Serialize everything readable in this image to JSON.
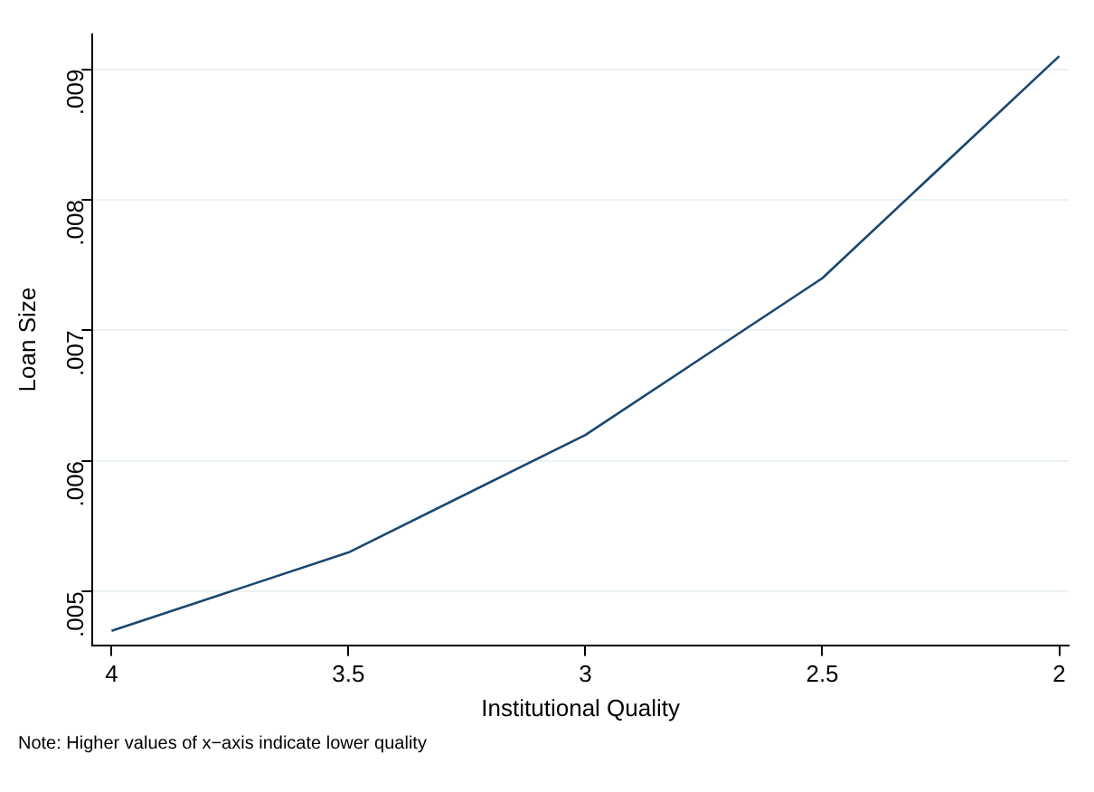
{
  "chart_data": {
    "type": "line",
    "xlabel": "Institutional Quality",
    "ylabel": "Loan Size",
    "x": [
      4,
      3.5,
      3,
      2.5,
      2
    ],
    "series": [
      {
        "color": "#1a476f",
        "values": [
          0.0047,
          0.0053,
          0.0062,
          0.0074,
          0.0091
        ]
      }
    ],
    "xlim": [
      4.04,
      1.98
    ],
    "xticks": [
      4,
      3.5,
      3,
      2.5,
      2
    ],
    "ylim": [
      0.00459,
      0.00927
    ],
    "yticks": [
      {
        "value": 0.005,
        "label": ".005"
      },
      {
        "value": 0.006,
        "label": ".006"
      },
      {
        "value": 0.007,
        "label": ".007"
      },
      {
        "value": 0.008,
        "label": ".008"
      },
      {
        "value": 0.009,
        "label": ".009"
      }
    ],
    "grid": "y",
    "legend": false,
    "marker": "none",
    "line_style": "solid",
    "annotations": [
      "Note: Higher values of x−axis indicate lower quality"
    ]
  }
}
